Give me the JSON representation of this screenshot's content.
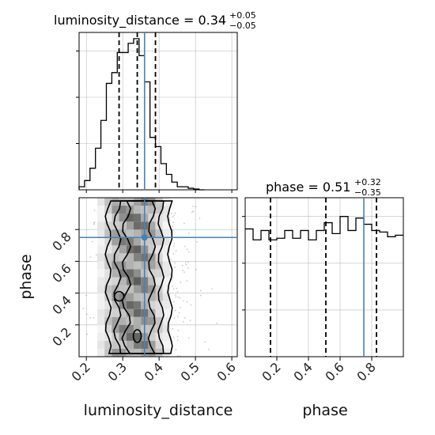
{
  "chart_data": {
    "type": "corner",
    "parameters": [
      "luminosity_distance",
      "phase"
    ],
    "truth": {
      "luminosity_distance": 0.36,
      "phase": 0.75
    },
    "titles": [
      {
        "param": "luminosity_distance",
        "median": "0.34",
        "plus": "+0.05",
        "minus": "−0.05"
      },
      {
        "param": "phase",
        "median": "0.51",
        "plus": "+0.32",
        "minus": "−0.35"
      }
    ],
    "xlim": {
      "luminosity_distance": [
        0.18,
        0.615
      ],
      "phase": [
        0.0,
        1.0
      ]
    },
    "ylim": {
      "phase": [
        0.0,
        1.0
      ]
    },
    "luminosity_distance_hist": {
      "edges": [
        0.18,
        0.195,
        0.21,
        0.225,
        0.24,
        0.255,
        0.27,
        0.285,
        0.3,
        0.315,
        0.33,
        0.345,
        0.36,
        0.375,
        0.39,
        0.405,
        0.42,
        0.435,
        0.45,
        0.465,
        0.48,
        0.495,
        0.51,
        0.525
      ],
      "counts": [
        0.02,
        0.06,
        0.14,
        0.27,
        0.45,
        0.69,
        0.76,
        0.89,
        0.89,
        0.95,
        0.98,
        0.87,
        0.7,
        0.34,
        0.28,
        0.17,
        0.1,
        0.05,
        0.02,
        0.02,
        0.01,
        0.005,
        0.0
      ]
    },
    "phase_hist": {
      "edges": [
        0.0,
        0.05,
        0.1,
        0.15,
        0.2,
        0.25,
        0.3,
        0.35,
        0.4,
        0.45,
        0.5,
        0.55,
        0.6,
        0.65,
        0.7,
        0.75,
        0.8,
        0.85,
        0.9,
        0.95,
        1.0
      ],
      "counts": [
        0.82,
        0.75,
        0.81,
        0.75,
        0.76,
        0.81,
        0.76,
        0.81,
        0.75,
        0.81,
        0.86,
        0.79,
        0.9,
        0.81,
        0.89,
        0.85,
        0.81,
        0.8,
        0.77,
        0.78
      ]
    },
    "quantiles": {
      "luminosity_distance": [
        0.29,
        0.34,
        0.39
      ],
      "phase": [
        0.16,
        0.51,
        0.83
      ]
    },
    "contour_levels": [
      "outer",
      "middle",
      "inner"
    ],
    "ticks": {
      "luminosity_distance": [
        "0.2",
        "0.3",
        "0.4",
        "0.5",
        "0.6"
      ],
      "phase_x": [
        "0.2",
        "0.4",
        "0.6",
        "0.8"
      ],
      "phase_y": [
        "0.2",
        "0.4",
        "0.6",
        "0.8"
      ]
    },
    "xlabel": "luminosity_distance",
    "ylabel": "phase",
    "xlabel_right": "phase",
    "grid": true,
    "colors": {
      "hist": "#000000",
      "truth": "#4682b4",
      "quantile": "#000000",
      "grid": "#bbbbbb",
      "density": "#333333"
    }
  }
}
